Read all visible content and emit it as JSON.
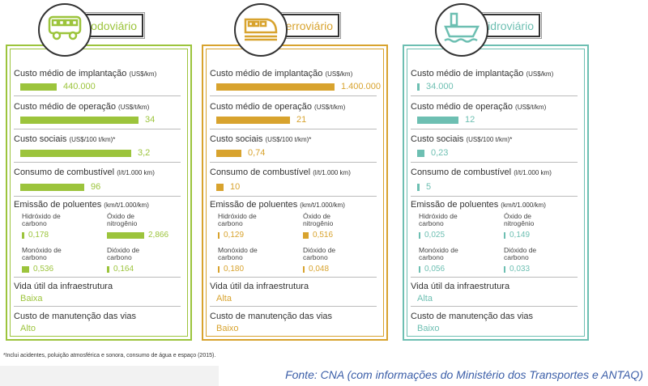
{
  "panels": [
    {
      "title": "Rodoviário",
      "icon": "bus-icon",
      "color": "#9cc43c",
      "metrics": [
        {
          "label": "Custo médio de implantação",
          "unit": "(US$/km)",
          "value": "440.000",
          "bar": 0.31
        },
        {
          "label": "Custo médio de operação",
          "unit": "(US$/t/km)",
          "value": "34",
          "bar": 1.0
        },
        {
          "label": "Custo sociais",
          "unit": "(US$/100 t/km)*",
          "value": "3,2",
          "bar": 0.94
        },
        {
          "label": "Consumo de combustível",
          "unit": "(l/t/1.000 km)",
          "value": "96",
          "bar": 0.54
        }
      ],
      "emissions": [
        {
          "label": "Hidróxido de carbono",
          "value": "0,178",
          "bar": 0.06
        },
        {
          "label": "Óxido de nitrogênio",
          "value": "2,866",
          "bar": 1.0
        },
        {
          "label": "Monóxido de carbono",
          "value": "0,536",
          "bar": 0.2
        },
        {
          "label": "Dióxido de carbono",
          "value": "0,164",
          "bar": 0.06
        }
      ],
      "life": "Baixa",
      "maintenance": "Alto"
    },
    {
      "title": "Ferroviário",
      "icon": "train-icon",
      "color": "#d8a32e",
      "metrics": [
        {
          "label": "Custo médio de implantação",
          "unit": "(US$/km)",
          "value": "1.400.000",
          "bar": 1.0
        },
        {
          "label": "Custo médio de operação",
          "unit": "(US$/t/km)",
          "value": "21",
          "bar": 0.62
        },
        {
          "label": "Custo sociais",
          "unit": "(US$/100 t/km)*",
          "value": "0,74",
          "bar": 0.21
        },
        {
          "label": "Consumo de combustível",
          "unit": "(l/t/1.000 km)",
          "value": "10",
          "bar": 0.06
        }
      ],
      "emissions": [
        {
          "label": "Hidróxido de carbono",
          "value": "0,129",
          "bar": 0.05
        },
        {
          "label": "Óxido de nitrogênio",
          "value": "0,516",
          "bar": 0.16
        },
        {
          "label": "Monóxido de carbono",
          "value": "0,180",
          "bar": 0.05
        },
        {
          "label": "Dióxido de carbono",
          "value": "0,048",
          "bar": 0.03
        }
      ],
      "life": "Alta",
      "maintenance": "Baixo"
    },
    {
      "title": "Hidroviário",
      "icon": "ship-icon",
      "color": "#6dbfb2",
      "metrics": [
        {
          "label": "Custo médio de implantação",
          "unit": "(US$/km)",
          "value": "34.000",
          "bar": 0.02
        },
        {
          "label": "Custo médio de operação",
          "unit": "(US$/t/km)",
          "value": "12",
          "bar": 0.35
        },
        {
          "label": "Custo sociais",
          "unit": "(US$/100 t/km)*",
          "value": "0,23",
          "bar": 0.06
        },
        {
          "label": "Consumo de combustível",
          "unit": "(l/t/1.000 km)",
          "value": "5",
          "bar": 0.02
        }
      ],
      "emissions": [
        {
          "label": "Hidróxido de carbono",
          "value": "0,025",
          "bar": 0.03
        },
        {
          "label": "Óxido de nitrogênio",
          "value": "0,149",
          "bar": 0.03
        },
        {
          "label": "Monóxido de carbono",
          "value": "0,056",
          "bar": 0.03
        },
        {
          "label": "Dióxido de carbono",
          "value": "0,033",
          "bar": 0.03
        }
      ],
      "life": "Alta",
      "maintenance": "Baixo"
    }
  ],
  "labels": {
    "emissions": "Emissão de poluentes",
    "emissions_unit": "(km/t/1.000/km)",
    "life": "Vida útil da infraestrutura",
    "maintenance": "Custo de manutenção das vias"
  },
  "footnote": "*Inclui acidentes, poluição atmosférica e sonora, consumo de água e espaço (2015).",
  "source": "Fonte: CNA (com informações do Ministério dos Transportes e ANTAQ)"
}
